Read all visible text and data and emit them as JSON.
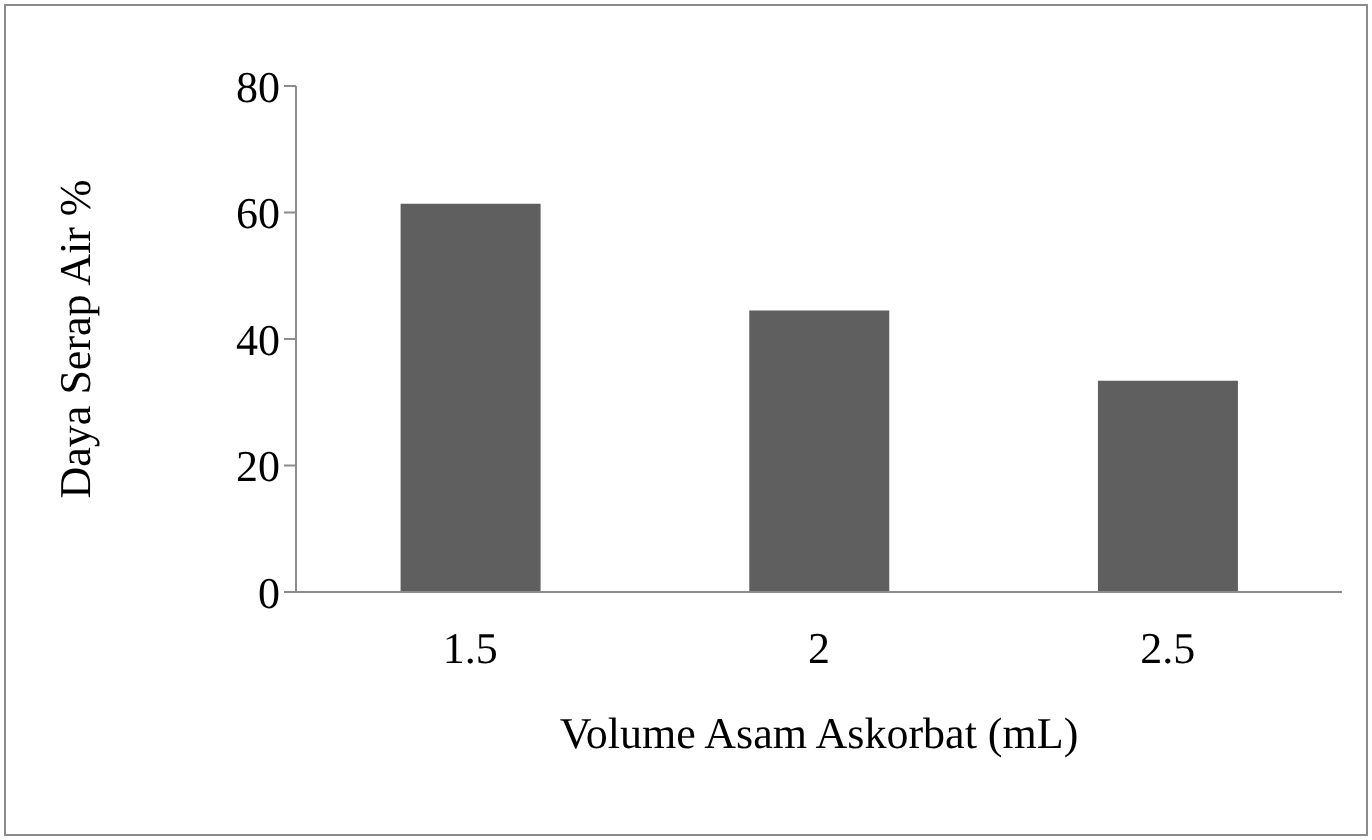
{
  "chart_data": {
    "type": "bar",
    "xlabel": "Volume  Asam Askorbat (mL)",
    "ylabel": "Daya Serap Air %",
    "categories": [
      "1.5",
      "2",
      "2.5"
    ],
    "values": [
      61.4,
      44.5,
      33.4
    ],
    "color": "#5f5f5f",
    "ylim": [
      0,
      80
    ],
    "yticks": [
      0,
      20,
      40,
      60,
      80
    ],
    "grid": false
  }
}
